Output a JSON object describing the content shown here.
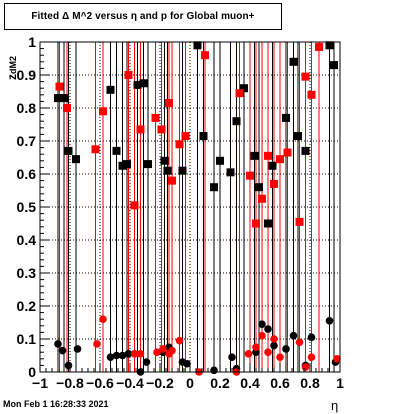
{
  "title": "Fitted Δ M^2 versus η and p for Global muon+",
  "footer": "Mon Feb  1 16:28:33 2021",
  "chart_data": {
    "type": "scatter",
    "xlabel": "η",
    "ylabel": "z",
    "ylabel_sub": "dM2",
    "xlim": [
      -1,
      1
    ],
    "ylim": [
      0,
      1
    ],
    "xticks": [
      -1,
      -0.8,
      -0.6,
      -0.4,
      -0.2,
      0,
      0.2,
      0.4,
      0.6,
      0.8,
      1
    ],
    "xtick_labels": [
      "−1",
      "−0.8",
      "−0.6",
      "−0.4",
      "−0.2",
      "0",
      "0.2",
      "0.4",
      "0.6",
      "0.8",
      "1"
    ],
    "yticks": [
      0,
      0.1,
      0.2,
      0.3,
      0.4,
      0.5,
      0.6,
      0.7,
      0.8,
      0.9,
      1
    ],
    "ytick_labels": [
      "0",
      "0.1",
      "0.2",
      "0.3",
      "0.4",
      "0.5",
      "0.6",
      "0.7",
      "0.8",
      "0.9",
      "1"
    ],
    "grid": true,
    "colors": {
      "black": "#000000",
      "red": "#ff0000"
    },
    "series": [
      {
        "color": "black",
        "marker": "square",
        "points": [
          {
            "x": -0.88,
            "y": 0.83
          },
          {
            "x": -0.84,
            "y": 0.83
          },
          {
            "x": -0.81,
            "y": 0.67
          },
          {
            "x": -0.76,
            "y": 0.645
          },
          {
            "x": -0.53,
            "y": 0.855
          },
          {
            "x": -0.49,
            "y": 0.67
          },
          {
            "x": -0.45,
            "y": 0.625
          },
          {
            "x": -0.42,
            "y": 0.63
          },
          {
            "x": -0.35,
            "y": 0.87
          },
          {
            "x": -0.31,
            "y": 0.875
          },
          {
            "x": -0.28,
            "y": 0.63
          },
          {
            "x": -0.17,
            "y": 0.64
          },
          {
            "x": -0.15,
            "y": 0.61
          },
          {
            "x": -0.05,
            "y": 0.61
          },
          {
            "x": 0.05,
            "y": 0.99
          },
          {
            "x": 0.09,
            "y": 0.715
          },
          {
            "x": 0.16,
            "y": 0.56
          },
          {
            "x": 0.2,
            "y": 0.64
          },
          {
            "x": 0.27,
            "y": 0.605
          },
          {
            "x": 0.31,
            "y": 0.76
          },
          {
            "x": 0.36,
            "y": 0.86
          },
          {
            "x": 0.43,
            "y": 0.655
          },
          {
            "x": 0.46,
            "y": 0.56
          },
          {
            "x": 0.52,
            "y": 0.45
          },
          {
            "x": 0.55,
            "y": 0.625
          },
          {
            "x": 0.64,
            "y": 0.77
          },
          {
            "x": 0.69,
            "y": 0.94
          },
          {
            "x": 0.72,
            "y": 0.715
          },
          {
            "x": 0.77,
            "y": 0.67
          },
          {
            "x": 0.93,
            "y": 0.99
          },
          {
            "x": 0.96,
            "y": 0.93
          }
        ]
      },
      {
        "color": "red",
        "marker": "square",
        "points": [
          {
            "x": -0.87,
            "y": 0.865
          },
          {
            "x": -0.82,
            "y": 0.8
          },
          {
            "x": -0.63,
            "y": 0.675
          },
          {
            "x": -0.58,
            "y": 0.79
          },
          {
            "x": -0.41,
            "y": 0.9
          },
          {
            "x": -0.37,
            "y": 0.505
          },
          {
            "x": -0.33,
            "y": 0.735
          },
          {
            "x": -0.23,
            "y": 0.77
          },
          {
            "x": -0.19,
            "y": 0.735
          },
          {
            "x": -0.14,
            "y": 0.815
          },
          {
            "x": -0.12,
            "y": 0.58
          },
          {
            "x": -0.07,
            "y": 0.69
          },
          {
            "x": -0.03,
            "y": 0.715
          },
          {
            "x": 0.1,
            "y": 0.96
          },
          {
            "x": 0.33,
            "y": 0.845
          },
          {
            "x": 0.4,
            "y": 0.595
          },
          {
            "x": 0.44,
            "y": 0.45
          },
          {
            "x": 0.48,
            "y": 0.525
          },
          {
            "x": 0.52,
            "y": 0.655
          },
          {
            "x": 0.56,
            "y": 0.57
          },
          {
            "x": 0.6,
            "y": 0.645
          },
          {
            "x": 0.65,
            "y": 0.665
          },
          {
            "x": 0.73,
            "y": 0.455
          },
          {
            "x": 0.77,
            "y": 0.895
          },
          {
            "x": 0.81,
            "y": 0.84
          },
          {
            "x": 0.86,
            "y": 0.985
          }
        ]
      },
      {
        "color": "black",
        "marker": "circle",
        "points": [
          {
            "x": -0.88,
            "y": 0.085
          },
          {
            "x": -0.85,
            "y": 0.065
          },
          {
            "x": -0.81,
            "y": 0.02
          },
          {
            "x": -0.75,
            "y": 0.07
          },
          {
            "x": -0.53,
            "y": 0.045
          },
          {
            "x": -0.49,
            "y": 0.05
          },
          {
            "x": -0.45,
            "y": 0.05
          },
          {
            "x": -0.41,
            "y": 0.055
          },
          {
            "x": -0.33,
            "y": 0.0
          },
          {
            "x": -0.29,
            "y": 0.03
          },
          {
            "x": -0.18,
            "y": 0.06
          },
          {
            "x": -0.14,
            "y": 0.075
          },
          {
            "x": -0.05,
            "y": 0.03
          },
          {
            "x": -0.02,
            "y": 0.025
          },
          {
            "x": 0.16,
            "y": 0.005
          },
          {
            "x": 0.28,
            "y": 0.045
          },
          {
            "x": 0.31,
            "y": 0.01
          },
          {
            "x": 0.44,
            "y": 0.06
          },
          {
            "x": 0.48,
            "y": 0.145
          },
          {
            "x": 0.52,
            "y": 0.13
          },
          {
            "x": 0.56,
            "y": 0.08
          },
          {
            "x": 0.64,
            "y": 0.07
          },
          {
            "x": 0.69,
            "y": 0.11
          },
          {
            "x": 0.77,
            "y": 0.02
          },
          {
            "x": 0.81,
            "y": 0.105
          },
          {
            "x": 0.93,
            "y": 0.155
          },
          {
            "x": 0.97,
            "y": 0.03
          }
        ]
      },
      {
        "color": "red",
        "marker": "circle",
        "points": [
          {
            "x": -0.62,
            "y": 0.085
          },
          {
            "x": -0.58,
            "y": 0.16
          },
          {
            "x": -0.37,
            "y": 0.055
          },
          {
            "x": -0.33,
            "y": 0.055
          },
          {
            "x": -0.22,
            "y": 0.06
          },
          {
            "x": -0.18,
            "y": 0.07
          },
          {
            "x": -0.14,
            "y": 0.055
          },
          {
            "x": -0.12,
            "y": 0.065
          },
          {
            "x": -0.07,
            "y": 0.095
          },
          {
            "x": 0.06,
            "y": 0.0
          },
          {
            "x": 0.31,
            "y": 0.0
          },
          {
            "x": 0.39,
            "y": 0.055
          },
          {
            "x": 0.44,
            "y": 0.075
          },
          {
            "x": 0.48,
            "y": 0.11
          },
          {
            "x": 0.52,
            "y": 0.06
          },
          {
            "x": 0.56,
            "y": 0.1
          },
          {
            "x": 0.6,
            "y": 0.045
          },
          {
            "x": 0.73,
            "y": 0.09
          },
          {
            "x": 0.77,
            "y": 0.015
          },
          {
            "x": 0.81,
            "y": 0.045
          },
          {
            "x": 0.98,
            "y": 0.04
          }
        ]
      }
    ]
  }
}
